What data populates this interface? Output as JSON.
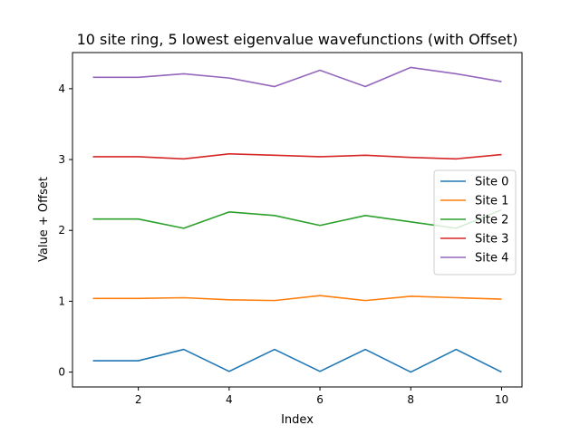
{
  "chart_data": {
    "type": "line",
    "title": "10 site ring, 5 lowest eigenvalue wavefunctions (with Offset)",
    "xlabel": "Index",
    "ylabel": "Value + Offset",
    "xlim": [
      0.55,
      10.45
    ],
    "ylim": [
      -0.21,
      4.51
    ],
    "x_ticks": [
      2,
      4,
      6,
      8,
      10
    ],
    "y_ticks": [
      0,
      1,
      2,
      3,
      4
    ],
    "grid": false,
    "legend_position": "center-right",
    "x": [
      1,
      2,
      3,
      4,
      5,
      6,
      7,
      8,
      9,
      10
    ],
    "series": [
      {
        "name": "Site 0",
        "color": "#1f77b4",
        "values": [
          0.16,
          0.16,
          0.32,
          0.01,
          0.32,
          0.01,
          0.32,
          0.0,
          0.32,
          0.0
        ]
      },
      {
        "name": "Site 1",
        "color": "#ff7f0e",
        "values": [
          1.04,
          1.04,
          1.05,
          1.02,
          1.01,
          1.08,
          1.01,
          1.07,
          1.05,
          1.03
        ]
      },
      {
        "name": "Site 2",
        "color": "#2ca02c",
        "values": [
          2.16,
          2.16,
          2.03,
          2.26,
          2.21,
          2.07,
          2.21,
          2.12,
          2.03,
          2.29
        ]
      },
      {
        "name": "Site 3",
        "color": "#d62728",
        "values": [
          3.04,
          3.04,
          3.01,
          3.08,
          3.06,
          3.04,
          3.06,
          3.03,
          3.01,
          3.07
        ]
      },
      {
        "name": "Site 4",
        "color": "#9467bd",
        "values": [
          4.16,
          4.16,
          4.21,
          4.15,
          4.03,
          4.26,
          4.03,
          4.3,
          4.21,
          4.1
        ]
      }
    ]
  }
}
